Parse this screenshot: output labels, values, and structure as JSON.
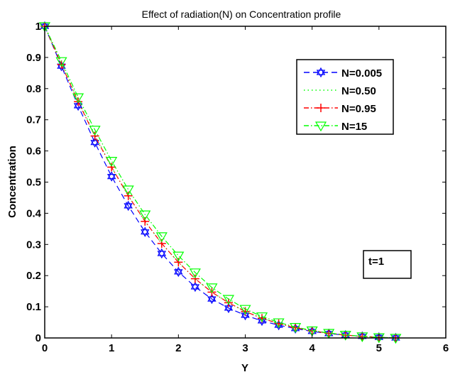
{
  "chart_data": {
    "type": "line",
    "title": "Effect of radiation(N) on Concentration profile",
    "xlabel": "Y",
    "ylabel": "Concentration",
    "xlim": [
      0,
      6
    ],
    "ylim": [
      0,
      1
    ],
    "xticks": [
      "0",
      "1",
      "2",
      "3",
      "4",
      "5",
      "6"
    ],
    "yticks": [
      "0",
      "0.1",
      "0.2",
      "0.3",
      "0.4",
      "0.5",
      "0.6",
      "0.7",
      "0.8",
      "0.9",
      "1"
    ],
    "grid": false,
    "legend_position": "top-right",
    "annotation": "t=1",
    "x": [
      0,
      0.25,
      0.5,
      0.75,
      1.0,
      1.25,
      1.5,
      1.75,
      2.0,
      2.25,
      2.5,
      2.75,
      3.0,
      3.25,
      3.5,
      3.75,
      4.0,
      4.25,
      4.5,
      4.75,
      5.0,
      5.25
    ],
    "series": [
      {
        "name": "N=0.005",
        "color": "#0000ff",
        "line_style": "dashed",
        "marker": "hexagram",
        "values": [
          1.0,
          0.872,
          0.745,
          0.627,
          0.518,
          0.424,
          0.34,
          0.271,
          0.212,
          0.164,
          0.125,
          0.096,
          0.073,
          0.055,
          0.041,
          0.03,
          0.021,
          0.014,
          0.009,
          0.005,
          0.002,
          0.0
        ]
      },
      {
        "name": "N=0.50",
        "color": "#00ff00",
        "line_style": "dotted",
        "marker": "none",
        "values": [
          1.0,
          0.88,
          0.762,
          0.652,
          0.548,
          0.456,
          0.374,
          0.303,
          0.243,
          0.19,
          0.147,
          0.113,
          0.085,
          0.063,
          0.046,
          0.033,
          0.023,
          0.015,
          0.009,
          0.005,
          0.002,
          0.0
        ]
      },
      {
        "name": "N=0.95",
        "color": "#ff0000",
        "line_style": "dashdot",
        "marker": "plus",
        "values": [
          1.0,
          0.877,
          0.758,
          0.648,
          0.548,
          0.456,
          0.374,
          0.303,
          0.243,
          0.19,
          0.147,
          0.113,
          0.085,
          0.063,
          0.046,
          0.033,
          0.023,
          0.015,
          0.009,
          0.005,
          0.002,
          0.0
        ]
      },
      {
        "name": "N=15",
        "color": "#00ff00",
        "line_style": "dashdot",
        "marker": "triangle-down",
        "values": [
          1.0,
          0.888,
          0.772,
          0.668,
          0.568,
          0.476,
          0.396,
          0.326,
          0.264,
          0.21,
          0.162,
          0.125,
          0.093,
          0.069,
          0.05,
          0.035,
          0.024,
          0.016,
          0.01,
          0.005,
          0.002,
          0.0
        ]
      }
    ]
  }
}
